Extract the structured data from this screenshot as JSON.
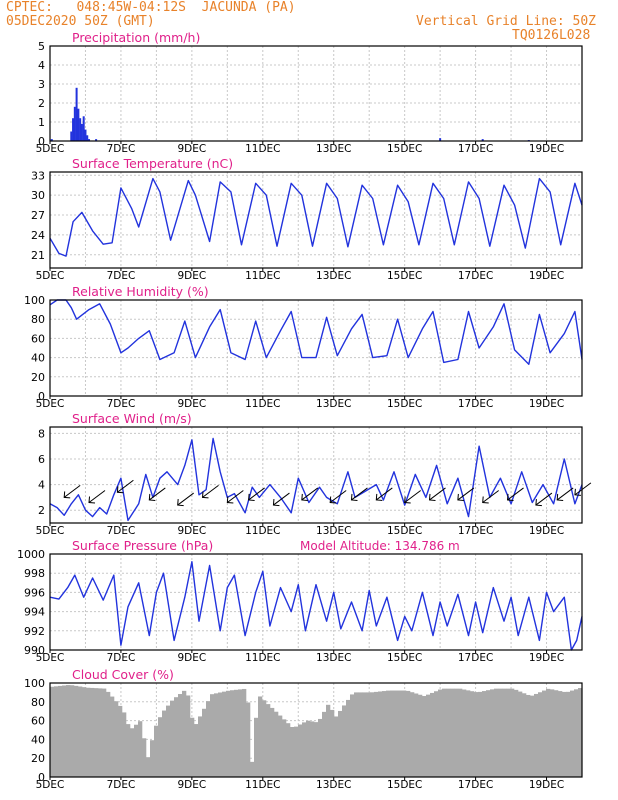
{
  "header": {
    "line1_left": "CPTEC:   048:45W-04:12S  JACUNDA (PA)",
    "line2_left": "05DEC2020 50Z (GMT)",
    "line2_right": "Vertical Grid Line: 50Z",
    "line3_right": "TQ0126L028",
    "model_altitude": "Model Altitude: 134.786 m"
  },
  "colors": {
    "header": "#e8822a",
    "title": "#e0208a",
    "line": "#2233dd",
    "cloud": "#aaaaaa",
    "grid": "#c8c8c8"
  },
  "x_tick_labels": [
    "5DEC",
    "7DEC",
    "9DEC",
    "11DEC",
    "13DEC",
    "15DEC",
    "17DEC",
    "19DEC"
  ],
  "x_tick_days": [
    0,
    2,
    4,
    6,
    8,
    10,
    12,
    14
  ],
  "x_range_days": [
    0,
    15
  ],
  "chart_data": [
    {
      "type": "bar",
      "title": "Precipitation (mm/h)",
      "ylim": [
        0,
        5
      ],
      "yticks": [
        0,
        1,
        2,
        3,
        4,
        5
      ],
      "x": [
        0.05,
        0.6,
        0.65,
        0.7,
        0.75,
        0.8,
        0.85,
        0.9,
        0.95,
        1.0,
        1.05,
        1.1,
        1.3,
        11.0,
        12.2,
        13.5
      ],
      "values": [
        0.1,
        0.5,
        1.2,
        1.8,
        2.8,
        1.7,
        1.2,
        0.9,
        1.3,
        0.6,
        0.3,
        0.1,
        0.1,
        0.15,
        0.1,
        0.05
      ]
    },
    {
      "type": "line",
      "title": "Surface Temperature (nC)",
      "ylim": [
        19,
        33.5
      ],
      "yticks": [
        21,
        24,
        27,
        30,
        33
      ],
      "x": [
        0,
        0.25,
        0.45,
        0.65,
        0.9,
        1.2,
        1.5,
        1.75,
        2.0,
        2.3,
        2.5,
        2.9,
        3.1,
        3.4,
        3.9,
        4.1,
        4.5,
        4.8,
        5.1,
        5.4,
        5.8,
        6.1,
        6.4,
        6.8,
        7.1,
        7.4,
        7.8,
        8.1,
        8.4,
        8.8,
        9.1,
        9.4,
        9.8,
        10.1,
        10.4,
        10.8,
        11.1,
        11.4,
        11.8,
        12.1,
        12.4,
        12.8,
        13.1,
        13.4,
        13.8,
        14.1,
        14.4,
        14.8,
        15.0
      ],
      "values": [
        23.5,
        21.2,
        20.8,
        26.0,
        27.4,
        24.6,
        22.6,
        22.8,
        31.1,
        28.0,
        25.2,
        32.5,
        30.5,
        23.2,
        32.2,
        30.0,
        23.0,
        32.0,
        30.5,
        22.5,
        31.8,
        30.0,
        22.3,
        31.8,
        30.0,
        22.3,
        31.8,
        29.5,
        22.2,
        31.5,
        29.5,
        22.5,
        31.5,
        29.0,
        22.5,
        31.8,
        29.5,
        22.5,
        32.0,
        29.5,
        22.3,
        31.5,
        28.5,
        22.0,
        32.5,
        30.5,
        22.5,
        31.8,
        28.5
      ]
    },
    {
      "type": "line",
      "title": "Relative Humidity (%)",
      "ylim": [
        0,
        100
      ],
      "yticks": [
        0,
        20,
        40,
        60,
        80,
        100
      ],
      "x": [
        0,
        0.2,
        0.45,
        0.6,
        0.75,
        1.1,
        1.4,
        1.7,
        2.0,
        2.2,
        2.5,
        2.8,
        3.1,
        3.5,
        3.8,
        4.1,
        4.5,
        4.8,
        5.1,
        5.5,
        5.8,
        6.1,
        6.5,
        6.8,
        7.1,
        7.5,
        7.8,
        8.1,
        8.5,
        8.8,
        9.1,
        9.5,
        9.8,
        10.1,
        10.5,
        10.8,
        11.1,
        11.5,
        11.8,
        12.1,
        12.5,
        12.8,
        13.1,
        13.5,
        13.8,
        14.1,
        14.5,
        14.8,
        15.0
      ],
      "values": [
        95,
        100,
        100,
        92,
        80,
        90,
        96,
        75,
        45,
        50,
        60,
        68,
        38,
        45,
        78,
        40,
        72,
        90,
        45,
        38,
        78,
        40,
        68,
        88,
        40,
        40,
        82,
        42,
        70,
        85,
        40,
        42,
        80,
        40,
        70,
        88,
        35,
        38,
        88,
        50,
        72,
        96,
        48,
        33,
        85,
        45,
        65,
        88,
        38
      ]
    },
    {
      "type": "line",
      "title": "Surface Wind (m/s)",
      "ylim": [
        1,
        8.5
      ],
      "yticks": [
        2,
        4,
        6,
        8
      ],
      "x": [
        0,
        0.2,
        0.4,
        0.6,
        0.8,
        1.0,
        1.2,
        1.4,
        1.6,
        1.8,
        2.0,
        2.2,
        2.5,
        2.7,
        2.9,
        3.1,
        3.3,
        3.6,
        3.8,
        4.0,
        4.2,
        4.4,
        4.6,
        4.8,
        5.0,
        5.2,
        5.5,
        5.7,
        5.9,
        6.2,
        6.5,
        6.8,
        7.0,
        7.3,
        7.6,
        7.8,
        8.1,
        8.4,
        8.6,
        8.9,
        9.2,
        9.4,
        9.7,
        10.0,
        10.3,
        10.6,
        10.9,
        11.2,
        11.5,
        11.8,
        12.1,
        12.4,
        12.7,
        13.0,
        13.3,
        13.6,
        13.9,
        14.2,
        14.5,
        14.8,
        15.0
      ],
      "values": [
        2.5,
        2.2,
        1.6,
        2.5,
        3.2,
        2.0,
        1.5,
        2.2,
        1.7,
        3.2,
        4.5,
        1.2,
        2.5,
        4.8,
        3.0,
        4.5,
        5.0,
        4.0,
        5.5,
        7.5,
        3.2,
        3.6,
        7.6,
        5.0,
        3.0,
        3.3,
        1.8,
        3.8,
        3.0,
        4.0,
        3.0,
        1.8,
        4.5,
        2.6,
        3.8,
        3.0,
        2.5,
        5.0,
        3.0,
        3.5,
        4.0,
        2.8,
        5.0,
        2.4,
        4.8,
        3.0,
        5.5,
        2.5,
        4.5,
        1.5,
        7.0,
        3.0,
        4.5,
        2.5,
        5.0,
        2.6,
        4.0,
        2.5,
        6.0,
        2.5,
        4.0
      ]
    },
    {
      "type": "line",
      "title": "Surface Pressure (hPa)",
      "ylim": [
        990,
        1000
      ],
      "yticks": [
        990,
        992,
        994,
        996,
        998,
        1000
      ],
      "x": [
        0,
        0.25,
        0.5,
        0.7,
        0.95,
        1.2,
        1.5,
        1.8,
        2.0,
        2.2,
        2.5,
        2.8,
        3.0,
        3.2,
        3.5,
        3.8,
        4.0,
        4.2,
        4.5,
        4.8,
        5.0,
        5.2,
        5.5,
        5.8,
        6.0,
        6.2,
        6.5,
        6.8,
        7.0,
        7.2,
        7.5,
        7.8,
        8.0,
        8.2,
        8.5,
        8.8,
        9.0,
        9.2,
        9.5,
        9.8,
        10.0,
        10.2,
        10.5,
        10.8,
        11.0,
        11.2,
        11.5,
        11.8,
        12.0,
        12.2,
        12.5,
        12.8,
        13.0,
        13.2,
        13.5,
        13.8,
        14.0,
        14.2,
        14.5,
        14.7,
        14.85,
        15.0
      ],
      "values": [
        995.5,
        995.3,
        996.5,
        997.8,
        995.5,
        997.5,
        995.2,
        997.8,
        990.5,
        994.5,
        997.0,
        991.5,
        996.0,
        998.0,
        991.0,
        995.5,
        999.2,
        993.0,
        998.8,
        992.0,
        996.5,
        997.8,
        991.5,
        996.0,
        998.2,
        992.5,
        996.5,
        994.0,
        996.8,
        992.0,
        996.8,
        993.0,
        996.0,
        992.2,
        995.0,
        992.0,
        996.2,
        992.5,
        995.5,
        991.0,
        993.5,
        992.0,
        996.0,
        991.5,
        995.0,
        992.5,
        995.8,
        991.5,
        995.0,
        991.8,
        996.5,
        993.0,
        995.5,
        991.5,
        995.5,
        991.0,
        996.0,
        994.0,
        995.5,
        990.0,
        991.0,
        993.5
      ]
    },
    {
      "type": "bar",
      "title": "Cloud Cover (%)",
      "ylim": [
        0,
        100
      ],
      "yticks": [
        0,
        20,
        40,
        60,
        80,
        100
      ],
      "x": [
        0,
        0.5,
        1.0,
        1.5,
        2.0,
        2.2,
        2.5,
        2.7,
        2.9,
        3.1,
        3.4,
        3.8,
        4.0,
        4.5,
        5.0,
        5.5,
        5.65,
        5.8,
        6.3,
        6.8,
        7.2,
        7.5,
        7.8,
        8.0,
        8.5,
        9.0,
        9.5,
        10.0,
        10.5,
        11.0,
        11.5,
        12.0,
        12.5,
        13.0,
        13.5,
        14.0,
        14.5,
        15.0
      ],
      "values": [
        96,
        98,
        95,
        94,
        72,
        50,
        60,
        20,
        52,
        68,
        82,
        94,
        52,
        88,
        92,
        94,
        10,
        88,
        70,
        52,
        60,
        58,
        78,
        64,
        90,
        90,
        92,
        92,
        86,
        94,
        94,
        90,
        94,
        94,
        86,
        94,
        90,
        96
      ]
    }
  ]
}
